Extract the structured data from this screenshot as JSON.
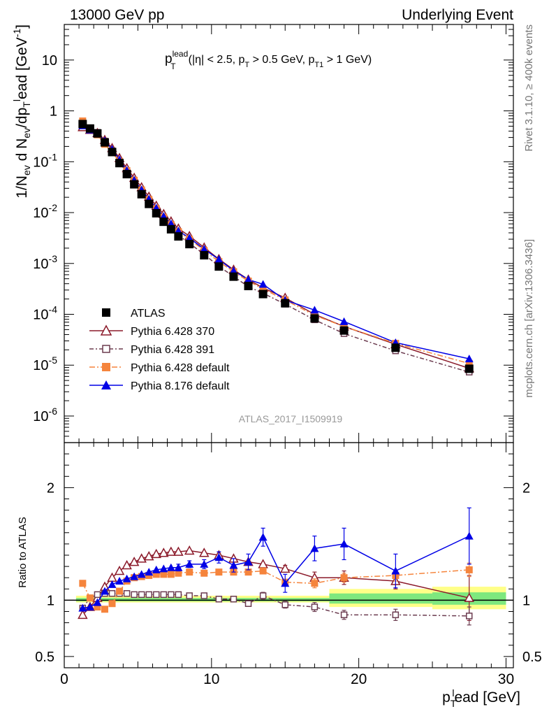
{
  "header": {
    "left": "13000 GeV pp",
    "right": "Underlying Event"
  },
  "side_labels": {
    "rivet": "Rivet 3.1.10, ≥ 400k events",
    "mcplots": "mcplots.cern.ch [arXiv:1306.3436]"
  },
  "analysis_id": "ATLAS_2017_I1509919",
  "annotation": {
    "p": "p",
    "sup": "lead",
    "sub": "T",
    "rest_1": "(|η| < 2.5, p",
    "sub2": "T",
    "rest_2": " > 0.5 GeV, p",
    "sub3": "T1",
    "rest_3": " > 1 GeV)"
  },
  "axes": {
    "ylabel_main": "1/N_ev d N_ev/dp_T^lead [GeV^-1]",
    "ylabel_ratio": "Ratio to ATLAS",
    "xlabel_p": "p",
    "xlabel_sub": "T",
    "xlabel_sup": "l",
    "xlabel_rest": "ead [GeV]"
  },
  "chart_data": {
    "type": "scatter",
    "title": "Underlying Event",
    "xlim": [
      0,
      30.5
    ],
    "xticks": [
      0,
      10,
      20,
      30
    ],
    "main_ylim": [
      3e-07,
      50
    ],
    "main_yscale": "log",
    "main_yticks": [
      "10^-6",
      "10^-5",
      "10^-4",
      "10^-3",
      "10^-2",
      "10^-1",
      "1",
      "10"
    ],
    "ratio_ylim": [
      0.4,
      2.4
    ],
    "ratio_yticks": [
      "0.5",
      "1",
      "2"
    ],
    "x": [
      1.25,
      1.75,
      2.25,
      2.75,
      3.25,
      3.75,
      4.25,
      4.75,
      5.25,
      5.75,
      6.25,
      6.75,
      7.25,
      7.75,
      8.5,
      9.5,
      10.5,
      11.5,
      12.5,
      13.5,
      15,
      17,
      19,
      22.5,
      27.5
    ],
    "atlas": [
      0.55,
      0.45,
      0.36,
      0.24,
      0.155,
      0.094,
      0.057,
      0.036,
      0.023,
      0.0148,
      0.0097,
      0.0066,
      0.0047,
      0.0034,
      0.0024,
      0.00145,
      0.00087,
      0.00055,
      0.00036,
      0.00025,
      0.000165,
      8.3e-05,
      4.8e-05,
      2.2e-05,
      8.5e-06
    ],
    "ratio_band_syst": [
      [
        0.8,
        18,
        0.98,
        1.04
      ],
      [
        18,
        25,
        0.94,
        1.1
      ],
      [
        25,
        30,
        0.92,
        1.12
      ]
    ],
    "ratio_band_stat": [
      [
        0.8,
        18,
        0.99,
        1.02
      ],
      [
        18,
        25,
        0.97,
        1.06
      ],
      [
        25,
        30,
        0.96,
        1.07
      ]
    ],
    "series": [
      {
        "name": "Pythia 6.428 370",
        "color": "#8b1a2a",
        "marker": "open-triangle",
        "dash": "",
        "ratio": [
          0.87,
          0.94,
          1.02,
          1.12,
          1.2,
          1.26,
          1.31,
          1.34,
          1.37,
          1.39,
          1.41,
          1.42,
          1.43,
          1.43,
          1.44,
          1.42,
          1.4,
          1.37,
          1.34,
          1.32,
          1.28,
          1.2,
          1.2,
          1.17,
          1.02
        ],
        "ratio_err": [
          0,
          0,
          0,
          0,
          0,
          0,
          0,
          0,
          0,
          0,
          0,
          0,
          0,
          0,
          0,
          0,
          0,
          0,
          0,
          0,
          0.03,
          0.05,
          0.06,
          0.07,
          0.2
        ]
      },
      {
        "name": "Pythia 6.428 391",
        "color": "#6b3b4f",
        "marker": "open-square",
        "dash": "6,3,2,3",
        "ratio": [
          0.93,
          1.02,
          1.05,
          1.06,
          1.06,
          1.06,
          1.06,
          1.05,
          1.05,
          1.05,
          1.05,
          1.05,
          1.05,
          1.05,
          1.04,
          1.04,
          1.01,
          1.01,
          0.97,
          1.04,
          0.96,
          0.94,
          0.87,
          0.87,
          0.86
        ],
        "ratio_err": [
          0,
          0,
          0,
          0,
          0,
          0,
          0,
          0,
          0,
          0,
          0,
          0,
          0,
          0,
          0,
          0,
          0,
          0,
          0,
          0.03,
          0.03,
          0.04,
          0.04,
          0.05,
          0.08
        ]
      },
      {
        "name": "Pythia 6.428 default",
        "color": "#f5843c",
        "marker": "filled-square",
        "dash": "8,3,2,3",
        "ratio": [
          1.15,
          1.02,
          0.94,
          0.92,
          0.97,
          1.08,
          1.17,
          1.2,
          1.21,
          1.22,
          1.23,
          1.23,
          1.23,
          1.24,
          1.25,
          1.24,
          1.25,
          1.25,
          1.25,
          1.26,
          1.16,
          1.15,
          1.2,
          1.22,
          1.27
        ],
        "ratio_err": [
          0,
          0,
          0,
          0,
          0,
          0,
          0,
          0,
          0,
          0,
          0,
          0,
          0,
          0,
          0,
          0,
          0,
          0,
          0,
          0,
          0.02,
          0.04,
          0.04,
          0.05,
          0.06
        ]
      },
      {
        "name": "Pythia 8.176 default",
        "color": "#0000e6",
        "marker": "filled-triangle",
        "dash": "",
        "ratio": [
          0.93,
          0.94,
          0.98,
          1.08,
          1.14,
          1.17,
          1.19,
          1.21,
          1.23,
          1.25,
          1.27,
          1.28,
          1.29,
          1.29,
          1.32,
          1.32,
          1.38,
          1.31,
          1.34,
          1.56,
          1.15,
          1.46,
          1.5,
          1.26,
          1.57
        ],
        "ratio_err": [
          0,
          0,
          0,
          0,
          0,
          0,
          0,
          0,
          0,
          0,
          0,
          0,
          0,
          0.03,
          0.03,
          0.04,
          0.05,
          0.06,
          0.07,
          0.08,
          0.08,
          0.11,
          0.14,
          0.15,
          0.25
        ]
      }
    ],
    "legend": [
      "ATLAS",
      "Pythia 6.428 370",
      "Pythia 6.428 391",
      "Pythia 6.428 default",
      "Pythia 8.176 default"
    ],
    "legend_position": "lower-left"
  }
}
